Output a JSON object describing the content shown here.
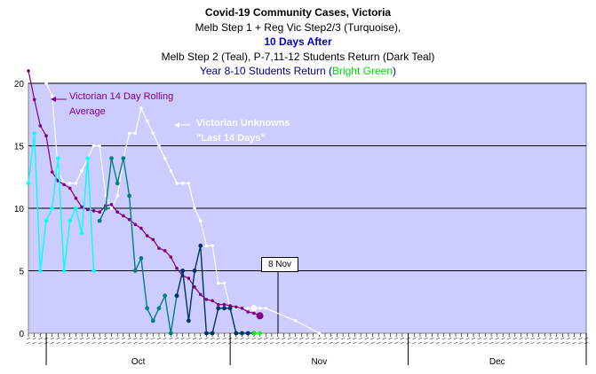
{
  "title": {
    "line1": "Covid-19 Community Cases, Victoria",
    "line2": "Melb Step 1 + Reg Vic Step2/3 (Turquoise),",
    "line3": "10 Days After",
    "line4": "Melb Step 2 (Teal), P-7,11-12 Students Return (Dark Teal)",
    "line5_pre": "Year 8-10 Students Return (",
    "line5_green": "Bright Green",
    "line5_post": ")"
  },
  "annotations": {
    "rolling_l1": "Victorian 14 Day Rolling",
    "rolling_l2": "Average",
    "unknown_l1": "Victorian Unknowns",
    "unknown_l2": "\"Last 14 Days\"",
    "callout": "8 Nov"
  },
  "colors": {
    "plot_bg": "#ccccff",
    "rolling": "#800080",
    "unknowns": "#ffffff",
    "turquoise": "#00ffff",
    "teal": "#008080",
    "dark_teal": "#003366",
    "bright_green": "#00ff00"
  },
  "chart_data": {
    "type": "line",
    "x_unit": "day index (Sept 28 = 0)",
    "ylim": [
      0,
      20
    ],
    "yticks": [
      0,
      5,
      10,
      15,
      20
    ],
    "months": [
      "Oct",
      "Nov",
      "Dec"
    ],
    "series": [
      {
        "name": "Victorian 14 Day Rolling Average",
        "x": [
          0,
          1,
          2,
          3,
          4,
          5,
          6,
          7,
          8,
          9,
          10,
          11,
          12,
          13,
          14,
          15,
          16,
          17,
          18,
          19,
          20,
          21,
          22,
          23,
          24,
          25,
          26,
          27,
          28,
          29,
          30,
          31,
          32,
          33,
          34,
          35,
          36,
          37,
          38,
          39
        ],
        "y": [
          21,
          18.7,
          16.6,
          15.8,
          12.9,
          12.2,
          11.9,
          11.6,
          10.8,
          10.1,
          9.9,
          9.8,
          9.7,
          10.2,
          10.3,
          9.7,
          9.4,
          9.1,
          8.7,
          8.4,
          7.8,
          7.5,
          6.8,
          6.6,
          6.1,
          5.2,
          4.6,
          4.4,
          3.7,
          3.1,
          2.7,
          2.6,
          2.3,
          2.3,
          2.2,
          2.1,
          2.0,
          1.7,
          1.6,
          1.4
        ]
      },
      {
        "name": "Victorian Unknowns Last 14 Days",
        "x": [
          3,
          4,
          5,
          6,
          7,
          8,
          9,
          10,
          11,
          12,
          13,
          14,
          15,
          16,
          17,
          18,
          19,
          20,
          21,
          22,
          23,
          24,
          25,
          26,
          27,
          28,
          29,
          30,
          31,
          32,
          33,
          34,
          35,
          36,
          37,
          38,
          39,
          40,
          45,
          49
        ],
        "y": [
          20,
          19,
          13,
          12,
          12,
          12,
          13,
          14,
          15,
          15,
          11,
          10,
          11,
          14,
          16,
          16,
          18,
          17,
          16,
          15,
          14,
          13,
          12,
          12,
          12,
          10,
          9,
          7,
          7,
          4,
          4,
          2,
          2,
          2,
          2,
          2,
          2,
          2,
          1,
          0
        ]
      },
      {
        "name": "Turquoise",
        "x": [
          0,
          1,
          2,
          3,
          4,
          5,
          6,
          7,
          8,
          9,
          10,
          11
        ],
        "y": [
          12,
          16,
          5,
          9,
          10,
          14,
          5,
          9,
          10,
          8,
          14,
          5
        ]
      },
      {
        "name": "Teal",
        "x": [
          12,
          13,
          14,
          15,
          16,
          17,
          18,
          19,
          20,
          21,
          22,
          23,
          24,
          25
        ],
        "y": [
          9,
          10,
          14,
          12,
          14,
          11,
          5,
          6,
          2,
          1,
          2,
          3,
          0,
          3
        ]
      },
      {
        "name": "Dark Teal",
        "x": [
          25,
          26,
          27,
          28,
          29,
          30,
          31,
          32,
          33,
          34,
          35,
          36,
          37,
          38
        ],
        "y": [
          3,
          5,
          1,
          5,
          7,
          0,
          0,
          2,
          2,
          2,
          0,
          0,
          0,
          0
        ]
      },
      {
        "name": "Bright Green",
        "x": [
          38,
          39
        ],
        "y": [
          0,
          0
        ]
      }
    ]
  }
}
